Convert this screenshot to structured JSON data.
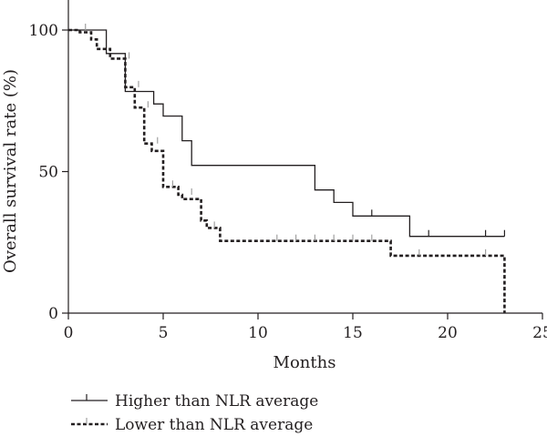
{
  "chart_data": {
    "type": "line",
    "subtype": "kaplan-meier-step",
    "xlabel": "Months",
    "ylabel": "Overall survival rate (%)",
    "xlim": [
      0,
      25
    ],
    "ylim": [
      0,
      100
    ],
    "xticks": [
      0,
      5,
      10,
      15,
      20,
      25
    ],
    "xtick_labels": [
      "0",
      "5",
      "10",
      "15",
      "20",
      "25"
    ],
    "yticks": [
      0,
      50,
      100
    ],
    "ytick_labels": [
      "0",
      "50",
      "100"
    ],
    "grid": false,
    "legend_position": "bottom-left",
    "series": [
      {
        "name": "Higher than NLR average",
        "style": "solid",
        "color": "#231f20",
        "censor_color": "#231f20",
        "steps": [
          [
            0,
            100
          ],
          [
            2,
            100
          ],
          [
            2,
            91.7
          ],
          [
            3,
            91.7
          ],
          [
            3,
            78.3
          ],
          [
            4.5,
            78.3
          ],
          [
            4.5,
            73.9
          ],
          [
            5,
            73.9
          ],
          [
            5,
            69.6
          ],
          [
            6,
            69.6
          ],
          [
            6,
            60.9
          ],
          [
            6.5,
            60.9
          ],
          [
            6.5,
            52.2
          ],
          [
            13,
            52.2
          ],
          [
            13,
            43.5
          ],
          [
            14,
            43.5
          ],
          [
            14,
            39.1
          ],
          [
            15,
            39.1
          ],
          [
            15,
            34.3
          ],
          [
            18,
            34.3
          ],
          [
            18,
            27.1
          ],
          [
            23,
            27.1
          ]
        ],
        "censored": [
          [
            16,
            34.3
          ],
          [
            19,
            27.1
          ],
          [
            22,
            27.1
          ],
          [
            23,
            27.1
          ]
        ]
      },
      {
        "name": "Lower than NLR average",
        "style": "dashed",
        "color": "#231f20",
        "censor_color": "#a0a0a0",
        "steps": [
          [
            0,
            100
          ],
          [
            0.6,
            100
          ],
          [
            0.6,
            99.2
          ],
          [
            1.2,
            99.2
          ],
          [
            1.2,
            96.7
          ],
          [
            1.5,
            96.7
          ],
          [
            1.5,
            93.3
          ],
          [
            2.2,
            93.3
          ],
          [
            2.2,
            89.9
          ],
          [
            3,
            89.9
          ],
          [
            3,
            79.8
          ],
          [
            3.5,
            79.8
          ],
          [
            3.5,
            72.6
          ],
          [
            4,
            72.6
          ],
          [
            4,
            59.9
          ],
          [
            4.4,
            59.9
          ],
          [
            4.4,
            57.3
          ],
          [
            5,
            57.3
          ],
          [
            5,
            44.6
          ],
          [
            5.8,
            44.6
          ],
          [
            5.8,
            41.8
          ],
          [
            6,
            41.8
          ],
          [
            6,
            40.3
          ],
          [
            7,
            40.3
          ],
          [
            7,
            32.7
          ],
          [
            7.3,
            32.7
          ],
          [
            7.3,
            30.1
          ],
          [
            8,
            30.1
          ],
          [
            8,
            25.5
          ],
          [
            17,
            25.5
          ],
          [
            17,
            20.3
          ],
          [
            23,
            20.3
          ],
          [
            23,
            0
          ]
        ],
        "censored": [
          [
            0.9,
            100
          ],
          [
            3.2,
            89.9
          ],
          [
            3.7,
            79.8
          ],
          [
            4.2,
            72.6
          ],
          [
            4.7,
            59.9
          ],
          [
            5.5,
            44.6
          ],
          [
            6.5,
            41.8
          ],
          [
            7.7,
            30.1
          ],
          [
            11,
            25.5
          ],
          [
            12,
            25.5
          ],
          [
            13,
            25.5
          ],
          [
            14,
            25.5
          ],
          [
            15,
            25.5
          ],
          [
            16,
            25.5
          ],
          [
            18.5,
            20.3
          ],
          [
            22,
            20.3
          ]
        ]
      }
    ]
  }
}
